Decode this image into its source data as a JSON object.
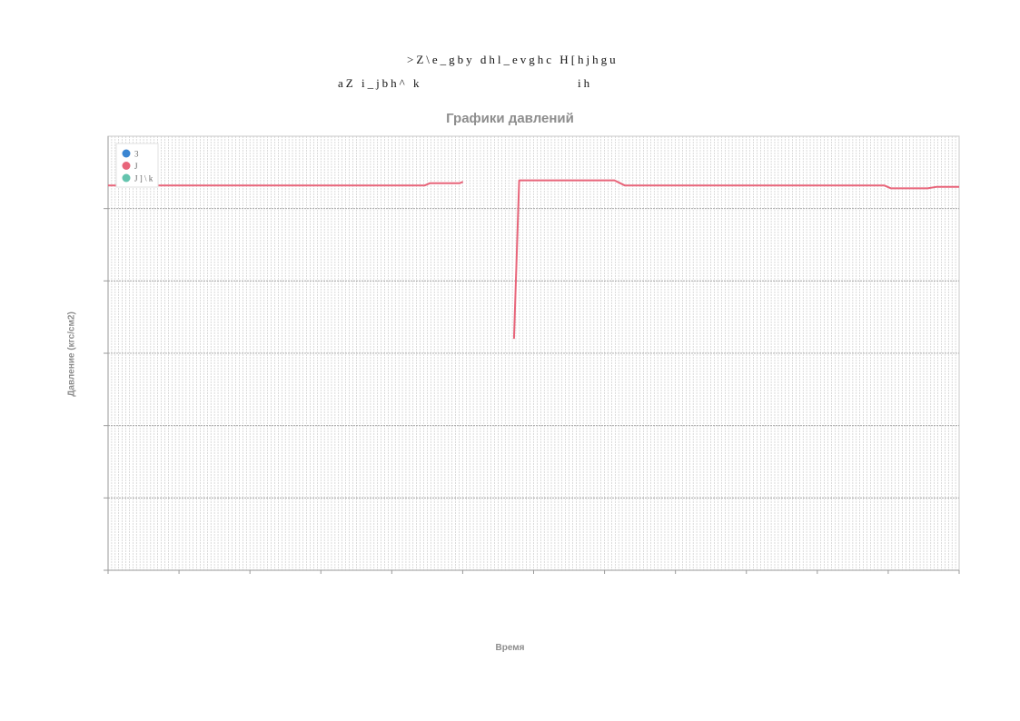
{
  "header": {
    "line1": ">Z\\e_gby dhl_evghc H[hjhgu",
    "line2_left": "aZ i_jbh^ k",
    "line2_right": "ih"
  },
  "chart_data": {
    "type": "line",
    "title": "Графики давлений",
    "xlabel": "Время",
    "ylabel": "Давление (кгс/см2)",
    "x_range": [
      0,
      1
    ],
    "ylim": [
      0,
      6
    ],
    "grid": true,
    "legend_position": "top-left",
    "series": [
      {
        "name": "3",
        "color": "#3b86d2",
        "x": [],
        "y": []
      },
      {
        "name": "J",
        "color": "#e8657a",
        "segments": [
          {
            "x": [
              0.0,
              0.372,
              0.378,
              0.413,
              0.417
            ],
            "y": [
              5.32,
              5.32,
              5.35,
              5.35,
              5.37
            ]
          },
          {
            "x": [
              0.477,
              0.483,
              0.595,
              0.607,
              0.912,
              0.92,
              0.963,
              0.973,
              1.0
            ],
            "y": [
              3.2,
              5.39,
              5.39,
              5.32,
              5.32,
              5.28,
              5.28,
              5.3,
              5.3
            ]
          }
        ]
      },
      {
        "name": "J ] \\ k",
        "color": "#64c4ae",
        "x": [],
        "y": []
      }
    ]
  }
}
